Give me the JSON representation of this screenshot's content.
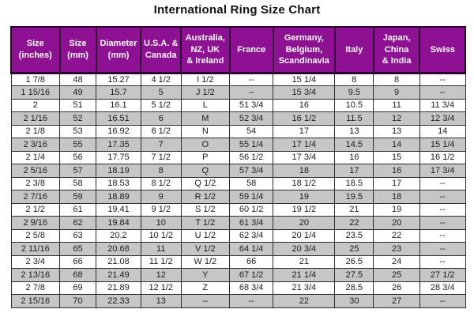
{
  "title": "International Ring Size Chart",
  "colors": {
    "header_bg": "#8D1192",
    "header_text": "#FFFFFF",
    "row_stripe": "#C6C6C6",
    "grid_line": "#2E2E2E",
    "text": "#1C1C1C"
  },
  "chart_data": {
    "type": "table",
    "title": "International Ring Size Chart",
    "missing_value_marker": "--",
    "columns": [
      "Size (inches)",
      "Size (mm)",
      "Diameter (mm)",
      "U.S.A. & Canada",
      "Australia, NZ, UK & Ireland",
      "France",
      "Germany, Belgium, Scandinavia",
      "Italy",
      "Japan, China & India",
      "Swiss"
    ],
    "header_display": [
      "Size\n(inches)",
      "Size\n(mm)",
      "Diameter\n(mm)",
      "U.S.A. &\nCanada",
      "Australia,\nNZ, UK\n& Ireland",
      "France",
      "Germany,\nBelgium,\nScandinavia",
      "Italy",
      "Japan,\nChina\n& India",
      "Swiss"
    ],
    "rows": [
      [
        "1 7/8",
        "48",
        "15.27",
        "4 1/2",
        "I 1/2",
        "--",
        "15 1/4",
        "8",
        "8",
        "--"
      ],
      [
        "1 15/16",
        "49",
        "15.7",
        "5",
        "J 1/2",
        "--",
        "15 3/4",
        "9.5",
        "9",
        "--"
      ],
      [
        "2",
        "51",
        "16.1",
        "5 1/2",
        "L",
        "51 3/4",
        "16",
        "10.5",
        "11",
        "11 3/4"
      ],
      [
        "2 1/16",
        "52",
        "16.51",
        "6",
        "M",
        "52 3/4",
        "16 1/2",
        "11.5",
        "12",
        "12 3/4"
      ],
      [
        "2 1/8",
        "53",
        "16.92",
        "6 1/2",
        "N",
        "54",
        "17",
        "13",
        "13",
        "14"
      ],
      [
        "2 3/16",
        "55",
        "17.35",
        "7",
        "O",
        "55 1/4",
        "17 1/4",
        "14.5",
        "14",
        "15 1/4"
      ],
      [
        "2 1/4",
        "56",
        "17.75",
        "7 1/2",
        "P",
        "56 1/2",
        "17 3/4",
        "16",
        "15",
        "16 1/2"
      ],
      [
        "2 5/16",
        "57",
        "18.19",
        "8",
        "Q",
        "57 3/4",
        "18",
        "17",
        "16",
        "17 3/4"
      ],
      [
        "2 3/8",
        "58",
        "18.53",
        "8 1/2",
        "Q 1/2",
        "58",
        "18 1/2",
        "18.5",
        "17",
        "--"
      ],
      [
        "2 7/16",
        "59",
        "18.89",
        "9",
        "R 1/2",
        "59 1/4",
        "19",
        "19.5",
        "18",
        "--"
      ],
      [
        "2 1/2",
        "61",
        "19.41",
        "9 1/2",
        "S 1/2",
        "60 1/2",
        "19 1/2",
        "21",
        "19",
        "--"
      ],
      [
        "2 9/16",
        "62",
        "19.84",
        "10",
        "T 1/2",
        "61 3/4",
        "20",
        "22",
        "20",
        "--"
      ],
      [
        "2 5/8",
        "63",
        "20.2",
        "10 1/2",
        "U 1/2",
        "62 3/4",
        "20 1/4",
        "23.5",
        "22",
        "--"
      ],
      [
        "2 11/16",
        "65",
        "20.68",
        "11",
        "V 1/2",
        "64 1/4",
        "20 3/4",
        "25",
        "23",
        "--"
      ],
      [
        "2 3/4",
        "66",
        "21.08",
        "11 1/2",
        "W 1/2",
        "66",
        "21",
        "26.5",
        "24",
        "--"
      ],
      [
        "2 13/16",
        "68",
        "21.49",
        "12",
        "Y",
        "67 1/2",
        "21 1/4",
        "27.5",
        "25",
        "27 1/2"
      ],
      [
        "2 7/8",
        "69",
        "21.89",
        "12 1/2",
        "Z",
        "68 3/4",
        "21 3/4",
        "28.5",
        "26",
        "28 3/4"
      ],
      [
        "2 15/16",
        "70",
        "22.33",
        "13",
        "--",
        "--",
        "22",
        "30",
        "27",
        "--"
      ]
    ]
  }
}
